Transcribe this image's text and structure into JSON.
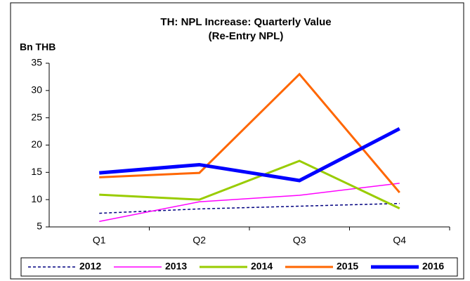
{
  "chart_data": {
    "type": "line",
    "title": "TH: NPL Increase: Quarterly Value",
    "subtitle": "(Re-Entry NPL)",
    "y_label": "Bn THB",
    "categories": [
      "Q1",
      "Q2",
      "Q3",
      "Q4"
    ],
    "ylim": [
      5,
      35
    ],
    "yticks": [
      5,
      10,
      15,
      20,
      25,
      30,
      35
    ],
    "legend": "bottom",
    "series": [
      {
        "name": "2012",
        "color": "#000080",
        "line_width": 1.5,
        "dash": true,
        "values": [
          7.5,
          8.3,
          8.8,
          9.3
        ]
      },
      {
        "name": "2013",
        "color": "#ff00ff",
        "line_width": 1.5,
        "dash": false,
        "values": [
          6,
          9.6,
          10.8,
          13
        ]
      },
      {
        "name": "2014",
        "color": "#99cc00",
        "line_width": 3,
        "dash": false,
        "values": [
          10.9,
          10,
          17.1,
          8.4
        ]
      },
      {
        "name": "2015",
        "color": "#ff6600",
        "line_width": 3,
        "dash": false,
        "values": [
          14.1,
          14.9,
          33,
          11.3
        ]
      },
      {
        "name": "2016",
        "color": "#0000ff",
        "line_width": 5,
        "dash": false,
        "values": [
          14.9,
          16.4,
          13.5,
          23
        ]
      }
    ]
  }
}
